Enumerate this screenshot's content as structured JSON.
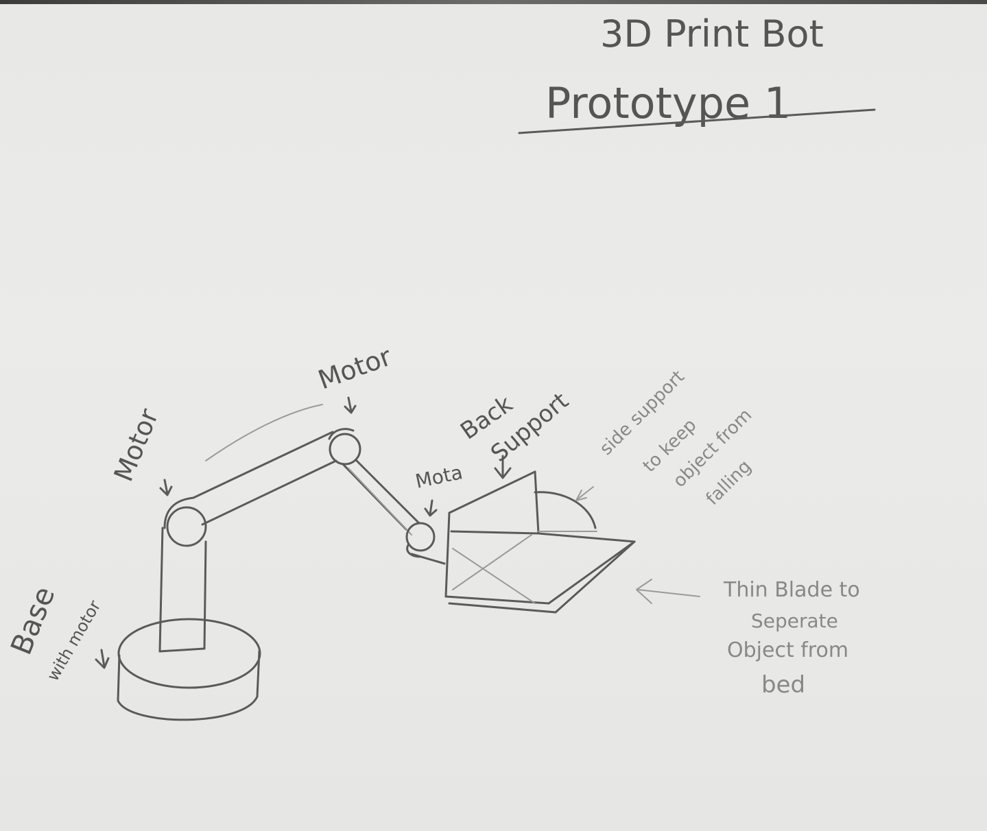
{
  "title": {
    "line1": "3D Print Bot",
    "line2": "Prototype 1"
  },
  "labels": {
    "motor_top": "Motor",
    "motor_left": "Motor",
    "motor_small": "Mota",
    "back_support_1": "Back",
    "back_support_2": "Support",
    "side_support_1": "side support",
    "side_support_2": "to keep",
    "side_support_3": "object from",
    "side_support_4": "falling",
    "base_1": "Base",
    "base_2": "with motor",
    "blade_1": "Thin Blade to",
    "blade_2": "Seperate",
    "blade_3": "Object from",
    "blade_4": "bed"
  },
  "colors": {
    "paper": "#e9e9e7",
    "pencil": "#5a5a5a",
    "pencil_light": "#9a9a9a"
  }
}
